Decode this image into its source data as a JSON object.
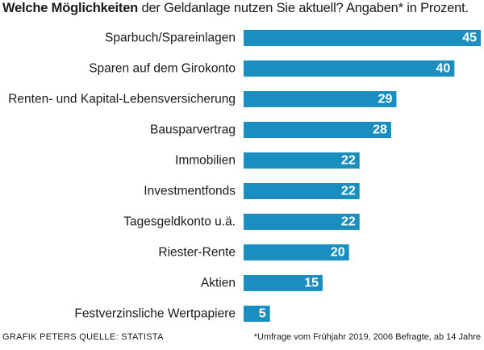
{
  "title_bold": "Welche Möglichkeiten",
  "title_rest": " der Geldanlage nutzen Sie aktuell? Angaben* in Prozent.",
  "footer": {
    "credit": "GRAFIK PETERS  QUELLE: STATISTA",
    "note": "*Umfrage vom Frühjahr 2019, 2006 Befragte, ab 14 Jahre"
  },
  "colors": {
    "bar": "#1a8fbf",
    "value_text": "#ffffff"
  },
  "chart_data": {
    "type": "bar",
    "orientation": "horizontal",
    "categories": [
      "Sparbuch/Spareinlagen",
      "Sparen auf dem Girokonto",
      "Renten- und Kapital-Lebensversicherung",
      "Bausparvertrag",
      "Immobilien",
      "Investmentfonds",
      "Tagesgeldkonto u.ä.",
      "Riester-Rente",
      "Aktien",
      "Festverzinsliche Wertpapiere"
    ],
    "values": [
      45,
      40,
      29,
      28,
      22,
      22,
      22,
      20,
      15,
      5
    ],
    "xlim": [
      0,
      45
    ],
    "value_labels": true,
    "grid": false
  }
}
